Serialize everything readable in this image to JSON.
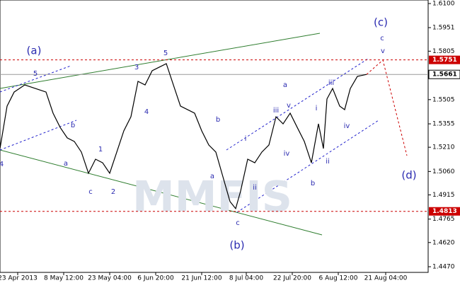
{
  "chart_data": {
    "type": "line",
    "xlim": [
      0,
      605
    ],
    "ylim": [
      1.4435,
      1.6122
    ],
    "xticks": [
      {
        "value": 25,
        "label": "23 Apr 2013"
      },
      {
        "value": 90,
        "label": "8 May 12:00"
      },
      {
        "value": 155,
        "label": "23 May 04:00"
      },
      {
        "value": 220,
        "label": "6 Jun 20:00"
      },
      {
        "value": 285,
        "label": "21 Jun 12:00"
      },
      {
        "value": 348,
        "label": "8 Jul 04:00"
      },
      {
        "value": 413,
        "label": "22 Jul 20:00"
      },
      {
        "value": 478,
        "label": "6 Aug 12:00"
      },
      {
        "value": 545,
        "label": "21 Aug 04:00"
      }
    ],
    "yticks": [
      1.61,
      1.5951,
      1.5805,
      1.5505,
      1.5355,
      1.521,
      1.506,
      1.4915,
      1.4765,
      1.462,
      1.447
    ],
    "yticklabels": [
      "1.6100",
      "1.5951",
      "1.5805",
      "1.5505",
      "1.5355",
      "1.5210",
      "1.5060",
      "1.4915",
      "1.4765",
      "1.4620",
      "1.4470"
    ],
    "levels": [
      {
        "value": 1.5751,
        "label": "1.5751",
        "color": "#cc0000"
      },
      {
        "value": 1.5661,
        "label": "1.5661",
        "color": "#999999"
      },
      {
        "value": 1.4813,
        "label": "1.4813",
        "color": "#cc0000"
      }
    ],
    "series": [
      {
        "color": "#000000",
        "x": [
          0,
          10,
          20,
          35,
          50,
          65,
          75,
          85,
          95,
          105,
          115,
          125,
          135,
          145,
          155,
          165,
          175,
          185,
          195,
          205,
          215,
          225,
          235,
          245,
          255,
          265,
          275,
          285,
          295,
          305,
          315,
          325,
          333,
          340,
          350,
          360,
          370,
          380,
          390,
          400,
          410,
          420,
          430,
          440,
          450,
          457,
          462,
          470,
          480,
          487,
          495,
          505,
          518
        ],
        "values": [
          1.5202,
          1.5465,
          1.5552,
          1.5596,
          1.5574,
          1.5552,
          1.5421,
          1.5333,
          1.5268,
          1.5246,
          1.518,
          1.5049,
          1.5136,
          1.5114,
          1.5049,
          1.518,
          1.5312,
          1.5399,
          1.5618,
          1.5596,
          1.5684,
          1.5706,
          1.5728,
          1.5596,
          1.5465,
          1.5443,
          1.5421,
          1.5312,
          1.5224,
          1.518,
          1.5027,
          1.4874,
          1.483,
          1.4939,
          1.5136,
          1.5114,
          1.518,
          1.5224,
          1.5399,
          1.5355,
          1.5421,
          1.5333,
          1.5246,
          1.5114,
          1.5355,
          1.5202,
          1.5509,
          1.5574,
          1.5465,
          1.5443,
          1.5574,
          1.5649,
          1.5661
        ]
      },
      {
        "color": "#cc0000",
        "x": [
          518,
          541,
          575
        ],
        "values": [
          1.5661,
          1.575,
          1.5158
        ]
      }
    ],
    "annotations": [
      "(a)",
      "5",
      "4",
      "a",
      "b",
      "c",
      "1",
      "2",
      "3",
      "4",
      "5",
      "b",
      "a",
      "c",
      "(b)",
      "i",
      "ii",
      "iii",
      "iv",
      "v",
      "a",
      "b",
      "i",
      "ii",
      "iii",
      "iv",
      "(c)",
      "c",
      "v",
      "(d)",
      "MMFIS"
    ]
  }
}
